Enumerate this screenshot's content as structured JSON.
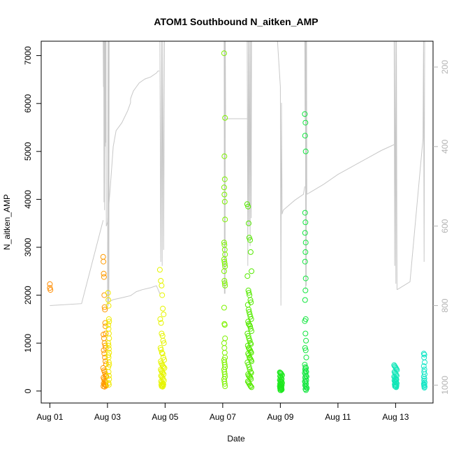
{
  "chart_data": {
    "type": "scatter",
    "title": "ATOM1 Southbound N_aitken_AMP",
    "xlabel": "Date",
    "ylabel": "N_aitken_AMP",
    "x_unit": "days since Aug 01",
    "xlim": [
      -0.3,
      13.3
    ],
    "ylim": [
      -250,
      7300
    ],
    "x_ticks": [
      {
        "value": 0,
        "label": "Aug 01"
      },
      {
        "value": 2,
        "label": "Aug 03"
      },
      {
        "value": 4,
        "label": "Aug 05"
      },
      {
        "value": 6,
        "label": "Aug 07"
      },
      {
        "value": 8,
        "label": "Aug 09"
      },
      {
        "value": 10,
        "label": "Aug 11"
      },
      {
        "value": 12,
        "label": "Aug 13"
      }
    ],
    "y_ticks": [
      0,
      1000,
      2000,
      3000,
      4000,
      5000,
      6000,
      7000
    ],
    "right_axis": {
      "ylim": [
        1045,
        135
      ],
      "ticks": [
        200,
        400,
        600,
        800,
        1000
      ],
      "color": "#b3b3b3"
    },
    "colors": {
      "Aug 01": "#ff8c00",
      "Aug 02": "#ff9a00",
      "Aug 03": "#f0ea00",
      "Aug 04": "#e6f500",
      "Aug 06": "#7ef200",
      "Aug 07": "#55ea00",
      "Aug 08": "#1ee81e",
      "Aug 09": "#14e640",
      "Aug 12": "#12e6b8",
      "Aug 13": "#12e6c6",
      "line": "#c8c8c8"
    },
    "series": [
      {
        "name": "Aug 01",
        "color_key": "Aug 01",
        "x": [
          0.0,
          0.0,
          0.02
        ],
        "y": [
          2230,
          2150,
          2110
        ]
      },
      {
        "name": "Aug 02",
        "color_key": "Aug 02",
        "x": [
          1.85,
          1.86,
          1.87,
          1.88,
          1.89,
          1.9,
          1.91,
          1.92,
          1.93,
          1.94,
          1.86,
          1.88,
          1.9,
          1.92,
          1.94,
          1.87,
          1.89,
          1.91,
          1.93,
          1.95,
          1.85,
          1.88,
          1.9,
          1.92,
          1.94,
          1.96,
          1.86,
          1.88,
          1.9,
          1.92,
          1.94,
          1.87,
          1.89,
          1.91,
          1.93,
          1.95,
          1.86,
          1.9
        ],
        "y": [
          2800,
          2700,
          2450,
          2380,
          2000,
          1750,
          1700,
          1420,
          1350,
          1200,
          1180,
          1100,
          1000,
          950,
          900,
          850,
          780,
          700,
          620,
          560,
          480,
          430,
          400,
          360,
          320,
          300,
          280,
          250,
          220,
          200,
          180,
          160,
          140,
          130,
          120,
          110,
          100,
          90
        ]
      },
      {
        "name": "Aug 03",
        "color_key": "Aug 03",
        "x": [
          2.02,
          2.03,
          2.04,
          2.05,
          2.06,
          2.03,
          2.04,
          2.05,
          2.06,
          2.03,
          2.04,
          2.05,
          2.06,
          2.03,
          2.04,
          2.05,
          2.06,
          2.03,
          2.04,
          2.05,
          2.06,
          2.04,
          2.05
        ],
        "y": [
          2050,
          1900,
          1780,
          1500,
          1450,
          1380,
          1300,
          1200,
          1100,
          1000,
          950,
          880,
          800,
          750,
          700,
          600,
          550,
          500,
          400,
          320,
          250,
          170,
          130
        ]
      },
      {
        "name": "Aug 04",
        "color_key": "Aug 04",
        "x": [
          3.82,
          3.85,
          3.88,
          3.9,
          3.92,
          3.95,
          3.83,
          3.86,
          3.88,
          3.91,
          3.93,
          3.96,
          3.84,
          3.86,
          3.89,
          3.91,
          3.94,
          3.97,
          3.85,
          3.87,
          3.9,
          3.92,
          3.95,
          3.98,
          3.85,
          3.87,
          3.9,
          3.92,
          3.95,
          3.86,
          3.88,
          3.91,
          3.93,
          3.96,
          3.86,
          3.89,
          3.92,
          3.94,
          3.87,
          3.9,
          3.93,
          3.88,
          3.91
        ],
        "y": [
          2530,
          2300,
          2200,
          2000,
          1720,
          1600,
          1500,
          1420,
          1200,
          1150,
          1050,
          1000,
          900,
          860,
          800,
          780,
          700,
          650,
          620,
          580,
          550,
          520,
          500,
          480,
          450,
          420,
          400,
          380,
          350,
          320,
          300,
          280,
          250,
          220,
          200,
          180,
          160,
          140,
          130,
          120,
          110,
          100,
          90
        ]
      },
      {
        "name": "Aug 06",
        "color_key": "Aug 06",
        "x": [
          6.05,
          6.08,
          6.06,
          6.07,
          6.05,
          6.06,
          6.07,
          6.08,
          6.05,
          6.06,
          6.07,
          6.08,
          6.05,
          6.06,
          6.07,
          6.08,
          6.05,
          6.06,
          6.07,
          6.08,
          6.05,
          6.06,
          6.07,
          6.08,
          6.05,
          6.06,
          6.07,
          6.08,
          6.05,
          6.06,
          6.07,
          6.08,
          6.05,
          6.06,
          6.07,
          6.08,
          6.05,
          6.06,
          6.07,
          6.08
        ],
        "y": [
          7050,
          5700,
          4900,
          4420,
          4250,
          4100,
          3950,
          3580,
          3100,
          3050,
          2950,
          2850,
          2750,
          2700,
          2650,
          2600,
          2500,
          2300,
          2250,
          2200,
          1740,
          1400,
          1380,
          1100,
          1000,
          900,
          800,
          700,
          650,
          600,
          550,
          500,
          450,
          400,
          350,
          300,
          250,
          200,
          150,
          100
        ]
      },
      {
        "name": "Aug 07",
        "color_key": "Aug 07",
        "x": [
          6.85,
          6.88,
          6.9,
          6.92,
          6.95,
          6.97,
          7.0,
          6.86,
          6.89,
          6.91,
          6.93,
          6.96,
          6.98,
          6.87,
          6.9,
          6.92,
          6.94,
          6.96,
          6.99,
          6.88,
          6.9,
          6.93,
          6.95,
          6.97,
          7.0,
          6.86,
          6.89,
          6.91,
          6.94,
          6.96,
          6.98,
          6.87,
          6.9,
          6.92,
          6.95,
          6.97,
          6.99,
          6.88,
          6.91,
          6.93,
          6.95,
          6.98,
          7.0,
          6.86,
          6.89,
          6.92,
          6.94,
          6.97,
          6.99,
          6.88,
          6.9,
          6.93,
          6.96,
          6.98,
          6.87,
          6.9,
          6.92,
          6.95,
          6.97,
          7.0
        ],
        "y": [
          3900,
          3850,
          3500,
          3200,
          3150,
          2900,
          2500,
          2400,
          2100,
          2050,
          2000,
          1900,
          1850,
          1800,
          1700,
          1650,
          1600,
          1550,
          1500,
          1450,
          1400,
          1380,
          1350,
          1300,
          1250,
          1200,
          1150,
          1100,
          1050,
          1000,
          980,
          950,
          900,
          880,
          850,
          820,
          800,
          780,
          750,
          700,
          680,
          650,
          620,
          600,
          550,
          500,
          450,
          400,
          380,
          350,
          320,
          300,
          280,
          250,
          200,
          180,
          150,
          120,
          100,
          80
        ]
      },
      {
        "name": "Aug 08",
        "color_key": "Aug 08",
        "x": [
          7.98,
          8.0,
          8.02,
          8.04,
          8.06,
          7.99,
          8.01,
          8.03,
          8.05,
          7.98,
          8.0,
          8.02,
          8.04,
          8.06,
          7.99,
          8.01,
          8.03,
          8.05,
          7.98,
          8.0,
          8.02,
          8.04,
          7.99,
          8.01,
          8.03,
          8.05,
          8.0,
          8.02
        ],
        "y": [
          390,
          380,
          370,
          350,
          330,
          310,
          290,
          270,
          250,
          230,
          210,
          200,
          190,
          170,
          150,
          140,
          130,
          120,
          100,
          90,
          80,
          70,
          60,
          50,
          40,
          30,
          20,
          15
        ]
      },
      {
        "name": "Aug 09",
        "color_key": "Aug 09",
        "x": [
          8.85,
          8.87,
          8.86,
          8.88,
          8.86,
          8.87,
          8.86,
          8.88,
          8.87,
          8.86,
          8.88,
          8.87,
          8.86,
          8.88,
          8.85,
          8.87,
          8.89,
          8.86,
          8.88,
          8.9,
          8.85,
          8.87,
          8.89,
          8.86,
          8.88,
          8.9,
          8.85,
          8.87,
          8.89,
          8.91,
          8.86,
          8.88,
          8.9,
          8.85,
          8.87,
          8.89,
          8.86,
          8.88,
          8.9,
          8.92,
          8.87,
          8.89
        ],
        "y": [
          5780,
          5600,
          5330,
          5000,
          3720,
          3520,
          3300,
          3100,
          2900,
          2700,
          2350,
          2100,
          1900,
          1500,
          1460,
          1200,
          1050,
          900,
          850,
          700,
          550,
          500,
          480,
          450,
          420,
          400,
          380,
          350,
          320,
          300,
          280,
          250,
          220,
          200,
          180,
          150,
          120,
          100,
          80,
          60,
          40,
          20
        ]
      },
      {
        "name": "Aug 12",
        "color_key": "Aug 12",
        "x": [
          11.95,
          11.97,
          11.99,
          12.01,
          12.03,
          12.05,
          11.96,
          11.98,
          12.0,
          12.02,
          12.04,
          11.95,
          11.97,
          11.99,
          12.01,
          12.03,
          11.96,
          11.98,
          12.0,
          12.02,
          12.04,
          11.97,
          11.99,
          12.01,
          12.03,
          11.98,
          12.0,
          12.02
        ],
        "y": [
          540,
          520,
          500,
          480,
          460,
          440,
          400,
          380,
          360,
          340,
          320,
          300,
          280,
          260,
          250,
          240,
          220,
          200,
          190,
          180,
          160,
          140,
          130,
          120,
          110,
          100,
          90,
          80
        ]
      },
      {
        "name": "Aug 13",
        "color_key": "Aug 13",
        "x": [
          12.98,
          13.0,
          12.99,
          13.01,
          12.98,
          13.0,
          12.99,
          13.01,
          12.98,
          13.0,
          12.99,
          13.01,
          12.98,
          13.0,
          12.99,
          13.01,
          13.0
        ],
        "y": [
          780,
          760,
          700,
          600,
          520,
          450,
          400,
          350,
          300,
          260,
          220,
          180,
          150,
          130,
          110,
          90,
          70
        ]
      }
    ],
    "right_axis_line": {
      "color_key": "line",
      "segments": [
        {
          "x": [
            0.0,
            1.1,
            1.85
          ],
          "y": [
            800,
            795,
            585
          ]
        },
        {
          "x": [
            1.85,
            1.86,
            1.87,
            1.88,
            1.89,
            1.9,
            1.91,
            1.92,
            1.93,
            1.94,
            1.95,
            1.96
          ],
          "y": [
            135,
            250,
            135,
            540,
            135,
            560,
            135,
            400,
            135,
            390,
            135,
            600
          ]
        },
        {
          "x": [
            1.96,
            2.0,
            2.1,
            2.2,
            2.3,
            2.5,
            2.7,
            2.8,
            2.8,
            2.85,
            2.9,
            3.0,
            3.1,
            3.2,
            3.3,
            3.5,
            3.7,
            3.75,
            3.78,
            3.8
          ],
          "y": [
            600,
            590,
            500,
            400,
            360,
            340,
            310,
            290,
            280,
            270,
            260,
            250,
            240,
            235,
            230,
            225,
            215,
            210,
            210,
            210
          ]
        },
        {
          "x": [
            2.0,
            2.02,
            2.03,
            2.04,
            2.05,
            2.06
          ],
          "y": [
            810,
            135,
            800,
            135,
            790,
            135
          ]
        },
        {
          "x": [
            2.06,
            2.2,
            2.5,
            2.8,
            2.9,
            3.0,
            3.2,
            3.5,
            3.7,
            3.82
          ],
          "y": [
            790,
            785,
            780,
            775,
            770,
            765,
            760,
            755,
            750,
            770
          ]
        },
        {
          "x": [
            3.82,
            3.85,
            3.88,
            3.9,
            3.92,
            3.95,
            3.98,
            4.0
          ],
          "y": [
            135,
            690,
            135,
            700,
            135,
            660,
            135,
            135
          ]
        },
        {
          "x": [
            4.0,
            4.5,
            5.0,
            5.5,
            6.0,
            6.05
          ],
          "y": [
            135,
            135,
            135,
            135,
            135,
            135
          ]
        },
        {
          "x": [
            6.05,
            6.06,
            6.07,
            6.08,
            6.09,
            6.1
          ],
          "y": [
            135,
            770,
            135,
            770,
            135,
            330
          ]
        },
        {
          "x": [
            6.1,
            6.5,
            6.8,
            6.85
          ],
          "y": [
            330,
            330,
            330,
            330
          ]
        },
        {
          "x": [
            6.85,
            6.87,
            6.89,
            6.91,
            6.93,
            6.95,
            6.97,
            6.99,
            7.0
          ],
          "y": [
            135,
            700,
            135,
            600,
            135,
            650,
            135,
            580,
            135
          ]
        },
        {
          "x": [
            7.0,
            7.2,
            7.5,
            7.9,
            8.0
          ],
          "y": [
            135,
            135,
            135,
            135,
            250
          ]
        },
        {
          "x": [
            8.0,
            8.02,
            8.04,
            8.06,
            8.1,
            8.5,
            8.8,
            8.85
          ],
          "y": [
            250,
            800,
            290,
            570,
            560,
            535,
            520,
            500
          ]
        },
        {
          "x": [
            8.85,
            8.86,
            8.87,
            8.88,
            8.89,
            8.9,
            8.91,
            8.92
          ],
          "y": [
            135,
            330,
            135,
            760,
            135,
            750,
            135,
            520
          ]
        },
        {
          "x": [
            8.92,
            9.5,
            10.0,
            10.5,
            11.0,
            11.5,
            11.95
          ],
          "y": [
            520,
            495,
            470,
            450,
            430,
            410,
            395
          ]
        },
        {
          "x": [
            11.95,
            11.97,
            11.99,
            12.01,
            12.03,
            12.05
          ],
          "y": [
            135,
            700,
            135,
            745,
            135,
            760
          ]
        },
        {
          "x": [
            12.05,
            12.5,
            12.95
          ],
          "y": [
            760,
            740,
            380
          ]
        },
        {
          "x": [
            12.95,
            12.97,
            12.99,
            13.01
          ],
          "y": [
            380,
            135,
            690,
            135
          ]
        }
      ]
    }
  }
}
